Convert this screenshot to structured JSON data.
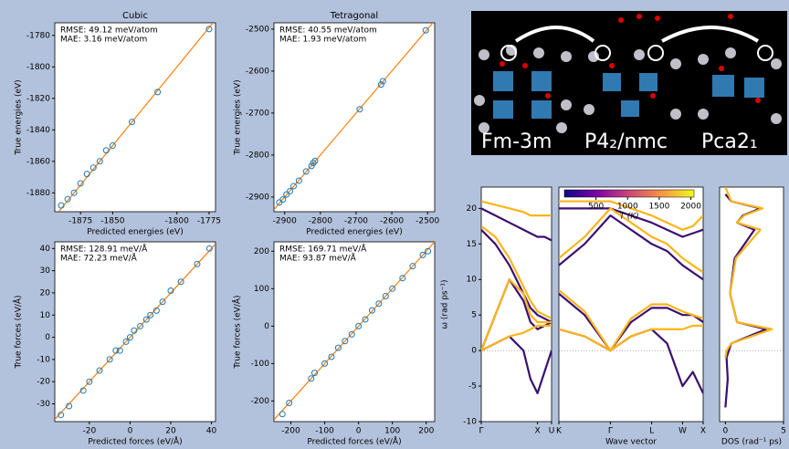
{
  "chart_data": [
    {
      "type": "scatter",
      "title": "Cubic",
      "xlabel": "Predicted energies (eV)",
      "ylabel": "True energies (eV)",
      "annotations": [
        "RMSE: 49.12 meV/atom",
        "MAE: 3.16 meV/atom"
      ],
      "x": [
        -1890,
        -1885,
        -1880,
        -1875,
        -1870,
        -1865,
        -1860,
        -1855,
        -1850,
        -1835,
        -1815,
        -1775
      ],
      "values": [
        -1888,
        -1884,
        -1880,
        -1874,
        -1868,
        -1864,
        -1860,
        -1853,
        -1850,
        -1835,
        -1816,
        -1776
      ],
      "marker_color": "#1f77b4",
      "line_color": "#ff7f0e",
      "xlim": [
        -1895,
        -1770
      ],
      "xticks": [
        -1875,
        -1850,
        -1800,
        -1775
      ],
      "ylim": [
        -1892,
        -1772
      ],
      "yticks": [
        -1880,
        -1860,
        -1840,
        -1820,
        -1800,
        -1780
      ]
    },
    {
      "type": "scatter",
      "title": "Tetragonal",
      "xlabel": "Predicted energies (eV)",
      "ylabel": "True energies (eV)",
      "annotations": [
        "RMSE: 40.55 meV/atom",
        "MAE: 1.93 meV/atom"
      ],
      "x": [
        -2915,
        -2905,
        -2895,
        -2885,
        -2875,
        -2860,
        -2840,
        -2825,
        -2820,
        -2815,
        -2690,
        -2630,
        -2625,
        -2505
      ],
      "values": [
        -2913,
        -2906,
        -2894,
        -2886,
        -2874,
        -2861,
        -2839,
        -2826,
        -2819,
        -2814,
        -2691,
        -2632,
        -2624,
        -2503
      ],
      "marker_color": "#1f77b4",
      "line_color": "#ff7f0e",
      "xlim": [
        -2930,
        -2480
      ],
      "xticks": [
        -2900,
        -2800,
        -2700,
        -2600,
        -2500
      ],
      "ylim": [
        -2935,
        -2485
      ],
      "yticks": [
        -2900,
        -2800,
        -2700,
        -2600,
        -2500
      ]
    },
    {
      "type": "scatter",
      "xlabel": "Predicted forces (eV/Å)",
      "ylabel": "True forces (eV/Å)",
      "annotations": [
        "RMSE: 128.91 meV/Å",
        "MAE: 72.23 meV/Å"
      ],
      "x": [
        -34,
        -30,
        -23,
        -20,
        -15,
        -10,
        -7,
        -5,
        -2,
        0,
        2,
        5,
        8,
        10,
        13,
        16,
        20,
        25,
        33,
        39
      ],
      "values": [
        -35,
        -31,
        -24,
        -20,
        -15,
        -10,
        -6,
        -6,
        -2,
        0,
        3,
        5,
        8,
        10,
        12,
        16,
        21,
        25,
        33,
        40
      ],
      "marker_color": "#1f77b4",
      "line_color": "#ff7f0e",
      "xlim": [
        -37,
        42
      ],
      "xticks": [
        -20,
        0,
        20,
        40
      ],
      "ylim": [
        -38,
        43
      ],
      "yticks": [
        -30,
        -20,
        -10,
        0,
        10,
        20,
        30,
        40
      ]
    },
    {
      "type": "scatter",
      "xlabel": "Predicted forces (eV/Å)",
      "ylabel": "True forces (eV/Å)",
      "annotations": [
        "RMSE: 169.71 meV/Å",
        "MAE: 93.87 meV/Å"
      ],
      "x": [
        -225,
        -205,
        -140,
        -130,
        -100,
        -80,
        -60,
        -40,
        -20,
        0,
        20,
        40,
        60,
        80,
        100,
        130,
        160,
        190,
        205
      ],
      "values": [
        -235,
        -205,
        -140,
        -125,
        -100,
        -82,
        -58,
        -40,
        -22,
        0,
        18,
        42,
        60,
        80,
        100,
        128,
        160,
        190,
        200
      ],
      "marker_color": "#1f77b4",
      "line_color": "#ff7f0e",
      "xlim": [
        -250,
        225
      ],
      "xticks": [
        -200,
        -100,
        0,
        100,
        200
      ],
      "ylim": [
        -255,
        225
      ],
      "yticks": [
        -200,
        -100,
        0,
        100,
        200
      ]
    },
    {
      "type": "line",
      "ylabel": "ω (rad ps⁻¹)",
      "xlim": [
        0,
        1
      ],
      "xticks": [
        {
          "value": 0,
          "label": "Γ"
        },
        {
          "value": 0.8,
          "label": "X"
        },
        {
          "value": 1,
          "label": "U"
        }
      ],
      "ylim": [
        -10,
        23
      ],
      "yticks": [
        -10,
        -5,
        0,
        5,
        10,
        15,
        20
      ],
      "series": [
        {
          "color": "#3b0f70",
          "x": [
            0,
            0.2,
            0.4,
            0.6,
            0.7,
            0.8,
            0.9,
            1
          ],
          "values": [
            0,
            1,
            2,
            0,
            -4,
            -6,
            -3,
            0
          ]
        },
        {
          "color": "#3b0f70",
          "x": [
            0,
            0.2,
            0.4,
            0.6,
            0.7,
            0.8,
            0.9,
            1
          ],
          "values": [
            0,
            5,
            10,
            7,
            4,
            3,
            3.5,
            4
          ]
        },
        {
          "color": "#3b0f70",
          "x": [
            0,
            0.2,
            0.4,
            0.6,
            0.7,
            0.8,
            0.9,
            1
          ],
          "values": [
            17,
            15,
            12,
            8,
            6,
            5,
            4.5,
            4
          ]
        },
        {
          "color": "#3b0f70",
          "x": [
            0,
            0.2,
            0.4,
            0.6,
            0.7,
            0.8,
            0.9,
            1
          ],
          "values": [
            20,
            19,
            18,
            17,
            16.5,
            16,
            16,
            15.5
          ]
        },
        {
          "color": "#fcb519",
          "x": [
            0,
            0.2,
            0.4,
            0.6,
            0.7,
            0.8,
            0.9,
            1
          ],
          "values": [
            0,
            1,
            2,
            2.5,
            3,
            3.5,
            3.5,
            3.5
          ]
        },
        {
          "color": "#fcb519",
          "x": [
            0,
            0.2,
            0.4,
            0.6,
            0.7,
            0.8,
            0.9,
            1
          ],
          "values": [
            0,
            5,
            10,
            8,
            5,
            4,
            4,
            4
          ]
        },
        {
          "color": "#fcb519",
          "x": [
            0,
            0.2,
            0.4,
            0.6,
            0.7,
            0.8,
            0.9,
            1
          ],
          "values": [
            21,
            20.5,
            20,
            19.5,
            19,
            19,
            19,
            19
          ]
        },
        {
          "color": "#fcb519",
          "x": [
            0,
            0.2,
            0.4,
            0.6,
            0.7,
            0.8,
            0.9,
            1
          ],
          "values": [
            17.5,
            16,
            13,
            9,
            7,
            5.5,
            5,
            4.5
          ]
        }
      ]
    },
    {
      "type": "line",
      "xlabel": "Wave vector",
      "xlim": [
        0,
        2.8
      ],
      "xticks": [
        {
          "value": 0,
          "label": "K"
        },
        {
          "value": 1,
          "label": "Γ"
        },
        {
          "value": 1.8,
          "label": "L"
        },
        {
          "value": 2.4,
          "label": "W"
        },
        {
          "value": 2.8,
          "label": "X"
        }
      ],
      "ylim": [
        -10,
        23
      ],
      "colorbar": {
        "label": "T (K)",
        "lim": [
          0,
          2050
        ],
        "ticks": [
          500,
          1000,
          1500,
          2000
        ]
      },
      "series": [
        {
          "color": "#3b0f70",
          "x": [
            0,
            0.5,
            1,
            1.4,
            1.8,
            2.1,
            2.4,
            2.6,
            2.8
          ],
          "values": [
            3,
            2,
            0,
            2,
            3,
            1,
            -5,
            -3,
            -6
          ]
        },
        {
          "color": "#3b0f70",
          "x": [
            0,
            0.5,
            1,
            1.4,
            1.8,
            2.1,
            2.4,
            2.6,
            2.8
          ],
          "values": [
            8,
            5,
            0,
            4,
            6,
            6,
            5,
            5,
            4
          ]
        },
        {
          "color": "#3b0f70",
          "x": [
            0,
            0.5,
            1,
            1.4,
            1.8,
            2.1,
            2.4,
            2.6,
            2.8
          ],
          "values": [
            12,
            15,
            19,
            17,
            15,
            14,
            12,
            11,
            10
          ]
        },
        {
          "color": "#3b0f70",
          "x": [
            0,
            0.5,
            1,
            1.4,
            1.8,
            2.1,
            2.4,
            2.6,
            2.8
          ],
          "values": [
            20,
            20,
            20,
            19,
            18,
            17,
            16,
            16.5,
            17
          ]
        },
        {
          "color": "#fcb519",
          "x": [
            0,
            0.5,
            1,
            1.4,
            1.8,
            2.1,
            2.4,
            2.6,
            2.8
          ],
          "values": [
            3,
            2,
            0,
            2,
            3,
            3,
            3,
            3.5,
            3.5
          ]
        },
        {
          "color": "#fcb519",
          "x": [
            0,
            0.5,
            1,
            1.4,
            1.8,
            2.1,
            2.4,
            2.6,
            2.8
          ],
          "values": [
            8.5,
            5.5,
            0,
            4.5,
            6.5,
            6.5,
            5.5,
            5,
            4.5
          ]
        },
        {
          "color": "#fcb519",
          "x": [
            0,
            0.5,
            1,
            1.4,
            1.8,
            2.1,
            2.4,
            2.6,
            2.8
          ],
          "values": [
            13,
            16,
            20,
            18,
            16,
            15,
            13,
            12,
            11
          ]
        },
        {
          "color": "#fcb519",
          "x": [
            0,
            0.5,
            1,
            1.4,
            1.8,
            2.1,
            2.4,
            2.6,
            2.8
          ],
          "values": [
            21,
            21,
            21,
            20,
            19,
            18,
            17,
            17.5,
            19
          ]
        }
      ]
    },
    {
      "type": "line",
      "xlabel": "DOS (rad⁻¹ ps)",
      "xlim": [
        -0.5,
        5
      ],
      "xticks": [
        0,
        5
      ],
      "ylim": [
        -10,
        23
      ],
      "series": [
        {
          "color": "#3b0f70",
          "x": [
            0,
            0.2,
            0.1,
            0.5,
            3.5,
            1,
            0.4,
            0.8,
            2.5,
            1,
            1.5,
            3,
            0.5,
            0
          ],
          "values": [
            -8,
            -4,
            -1,
            1,
            3,
            4,
            8,
            13,
            17,
            18,
            19,
            20,
            21,
            22
          ]
        },
        {
          "color": "#fcb519",
          "x": [
            0,
            0.1,
            0.5,
            4,
            1,
            0.4,
            0.9,
            3,
            1,
            1.6,
            3.2,
            0.5,
            0
          ],
          "values": [
            -1,
            0,
            1,
            3,
            4,
            8,
            13,
            17,
            18,
            19,
            20,
            21,
            23
          ]
        }
      ]
    }
  ],
  "structure_panel": {
    "labels": [
      "Fm-3m",
      "P4₂/nmc",
      "Pca2₁"
    ]
  }
}
